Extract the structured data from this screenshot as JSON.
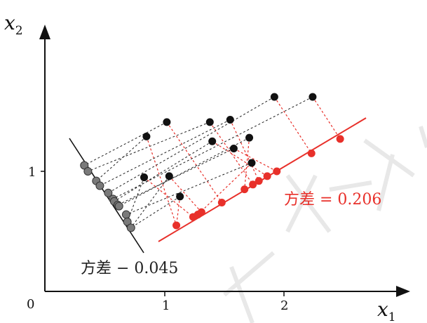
{
  "axes": {
    "x_label": "x1",
    "y_label": "x2",
    "origin_label": "0",
    "x_ticks": [
      "1",
      "2"
    ],
    "y_ticks": [
      "1"
    ]
  },
  "annotations": {
    "var_red": "方差 = 0.206",
    "var_black": "方差 − 0.045"
  },
  "colors": {
    "axis": "#111111",
    "black_points": "#111111",
    "gray_projection": "#7a7a7a",
    "red": "#e8302a",
    "watermark": "#dcdcdc"
  },
  "points_xy": [
    [
      0.85,
      1.29
    ],
    [
      1.02,
      1.41
    ],
    [
      1.38,
      1.41
    ],
    [
      1.55,
      1.43
    ],
    [
      1.92,
      1.62
    ],
    [
      2.24,
      1.62
    ],
    [
      1.4,
      1.25
    ],
    [
      1.58,
      1.19
    ],
    [
      1.71,
      1.28
    ],
    [
      1.73,
      1.07
    ],
    [
      0.83,
      0.95
    ],
    [
      1.04,
      0.96
    ],
    [
      1.13,
      0.79
    ]
  ],
  "red_projections_xy": [
    [
      1.1,
      0.55
    ],
    [
      1.24,
      0.62
    ],
    [
      1.28,
      0.64
    ],
    [
      1.31,
      0.66
    ],
    [
      1.48,
      0.74
    ],
    [
      1.67,
      0.85
    ],
    [
      1.74,
      0.89
    ],
    [
      1.79,
      0.92
    ],
    [
      1.86,
      0.96
    ],
    [
      1.94,
      1.0
    ],
    [
      2.23,
      1.15
    ],
    [
      2.47,
      1.27
    ]
  ],
  "gray_projections_xy": [
    [
      0.33,
      1.05
    ],
    [
      0.36,
      1.0
    ],
    [
      0.43,
      0.92
    ],
    [
      0.46,
      0.88
    ],
    [
      0.53,
      0.82
    ],
    [
      0.57,
      0.77
    ],
    [
      0.58,
      0.75
    ],
    [
      0.61,
      0.72
    ],
    [
      0.62,
      0.71
    ],
    [
      0.68,
      0.64
    ],
    [
      0.69,
      0.58
    ],
    [
      0.72,
      0.53
    ]
  ]
}
